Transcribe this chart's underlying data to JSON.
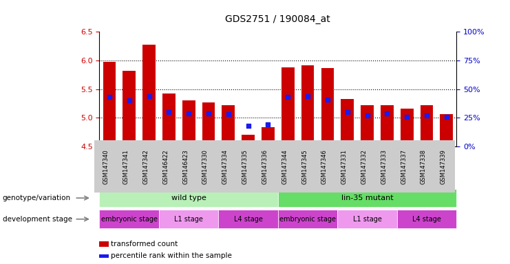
{
  "title": "GDS2751 / 190084_at",
  "samples": [
    "GSM147340",
    "GSM147341",
    "GSM147342",
    "GSM146422",
    "GSM146423",
    "GSM147330",
    "GSM147334",
    "GSM147335",
    "GSM147336",
    "GSM147344",
    "GSM147345",
    "GSM147346",
    "GSM147331",
    "GSM147332",
    "GSM147333",
    "GSM147337",
    "GSM147338",
    "GSM147339"
  ],
  "bar_values": [
    5.97,
    5.82,
    6.27,
    5.42,
    5.3,
    5.27,
    5.22,
    4.7,
    4.84,
    5.88,
    5.91,
    5.87,
    5.33,
    5.22,
    5.22,
    5.16,
    5.22,
    5.06
  ],
  "dot_values": [
    43,
    40,
    44,
    30,
    29,
    29,
    28,
    18,
    19,
    43,
    44,
    41,
    30,
    27,
    29,
    26,
    27,
    26
  ],
  "ylim": [
    4.5,
    6.5
  ],
  "yticks_left": [
    4.5,
    5.0,
    5.5,
    6.0,
    6.5
  ],
  "yticks_right": [
    0,
    25,
    50,
    75,
    100
  ],
  "bar_color": "#cc0000",
  "dot_color": "#1a1aee",
  "bar_bottom": 4.5,
  "genotype_groups": [
    {
      "label": "wild type",
      "start": 0,
      "end": 9,
      "color": "#b8f0b8"
    },
    {
      "label": "lin-35 mutant",
      "start": 9,
      "end": 18,
      "color": "#66dd66"
    }
  ],
  "stage_groups": [
    {
      "label": "embryonic stage",
      "start": 0,
      "end": 3,
      "color": "#dd55dd"
    },
    {
      "label": "L1 stage",
      "start": 3,
      "end": 6,
      "color": "#ee88ee"
    },
    {
      "label": "L4 stage",
      "start": 6,
      "end": 9,
      "color": "#dd55dd"
    },
    {
      "label": "embryonic stage",
      "start": 9,
      "end": 12,
      "color": "#dd55dd"
    },
    {
      "label": "L1 stage",
      "start": 12,
      "end": 15,
      "color": "#ee88ee"
    },
    {
      "label": "L4 stage",
      "start": 15,
      "end": 18,
      "color": "#dd55dd"
    }
  ],
  "legend_transformed": "transformed count",
  "legend_percentile": "percentile rank within the sample",
  "genotype_label": "genotype/variation",
  "stage_label": "development stage",
  "grid_color": "#888888",
  "left_tick_color": "#cc0000",
  "right_tick_color": "#0000cc",
  "background_color": "#ffffff",
  "tick_label_bg": "#cccccc"
}
